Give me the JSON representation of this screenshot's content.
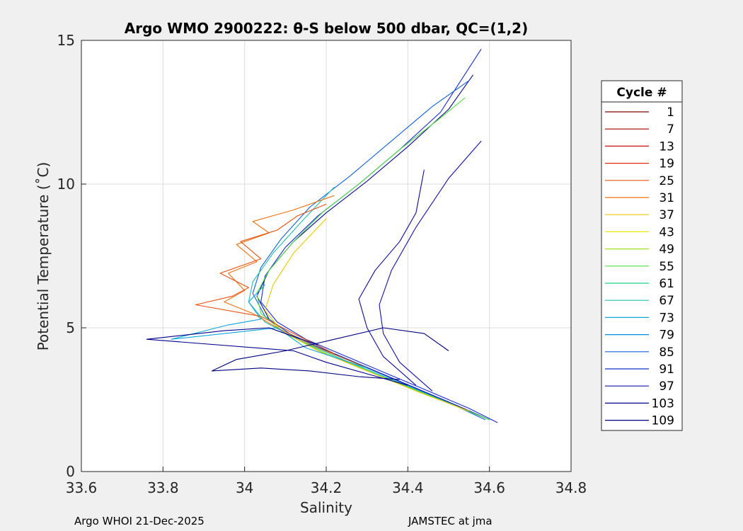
{
  "chart_data": {
    "type": "line",
    "title": "Argo WMO 2900222: θ-S below 500 dbar,  QC=(1,2)",
    "xlabel": "Salinity",
    "ylabel": "Potential Temperature (˚C)",
    "xlim": [
      33.6,
      34.8
    ],
    "ylim": [
      0,
      15
    ],
    "x_ticks": [
      "33.6",
      "33.8",
      "34",
      "34.2",
      "34.4",
      "34.6",
      "34.8"
    ],
    "y_ticks": [
      "0",
      "5",
      "10",
      "15"
    ],
    "grid": true,
    "legend": {
      "title": "Cycle #",
      "placement": "right-outside",
      "entries": [
        "1",
        "7",
        "13",
        "19",
        "25",
        "31",
        "37",
        "43",
        "49",
        "55",
        "61",
        "67",
        "73",
        "79",
        "85",
        "91",
        "97",
        "103",
        "109"
      ],
      "colors": [
        "#800000",
        "#a50000",
        "#c81010",
        "#e03010",
        "#e85010",
        "#f07010",
        "#e8c800",
        "#e8e800",
        "#a0e020",
        "#50e040",
        "#20d080",
        "#20c0b0",
        "#10a8d8",
        "#0090e0",
        "#1060e0",
        "#1030c8",
        "#1018b0",
        "#00008c",
        "#000080"
      ]
    },
    "series": [
      {
        "color": "#1a2ad0",
        "x": [
          34.62,
          34.55,
          34.45,
          34.35,
          34.25,
          34.15,
          34.08,
          34.04,
          34.05,
          34.1,
          34.18,
          34.28,
          34.38,
          34.48,
          34.58
        ],
        "y": [
          1.7,
          2.2,
          2.8,
          3.4,
          4.0,
          4.6,
          5.2,
          5.9,
          6.8,
          7.8,
          8.9,
          10.0,
          11.2,
          12.5,
          14.7
        ]
      },
      {
        "color": "#0a0a90",
        "x": [
          34.6,
          34.52,
          34.42,
          34.32,
          34.22,
          34.12,
          34.06,
          34.03,
          34.06,
          34.12,
          34.2,
          34.3,
          34.4,
          34.5,
          34.56
        ],
        "y": [
          1.8,
          2.3,
          2.9,
          3.5,
          4.1,
          4.7,
          5.3,
          6.1,
          7.0,
          8.0,
          9.0,
          10.1,
          11.3,
          12.6,
          13.8
        ]
      },
      {
        "color": "#1060e0",
        "x": [
          34.59,
          34.5,
          34.4,
          34.3,
          34.2,
          34.11,
          34.05,
          34.02,
          34.04,
          34.09,
          34.16,
          34.26,
          34.36,
          34.46,
          34.55
        ],
        "y": [
          1.8,
          2.4,
          3.0,
          3.6,
          4.2,
          4.8,
          5.4,
          6.2,
          7.1,
          8.1,
          9.2,
          10.3,
          11.5,
          12.7,
          13.6
        ]
      },
      {
        "color": "#20c0b0",
        "x": [
          34.6,
          34.48,
          34.36,
          34.24,
          34.13,
          34.05,
          34.01,
          34.02,
          34.07,
          34.14,
          34.22
        ],
        "y": [
          1.8,
          2.5,
          3.2,
          3.9,
          4.6,
          5.2,
          5.9,
          6.6,
          7.6,
          8.7,
          9.9
        ]
      },
      {
        "color": "#50e040",
        "x": [
          34.6,
          34.46,
          34.32,
          34.2,
          34.1,
          34.04,
          34.03,
          34.06,
          34.12,
          34.19,
          34.28,
          34.38,
          34.48,
          34.54
        ],
        "y": [
          1.8,
          2.6,
          3.4,
          4.1,
          4.8,
          5.5,
          6.2,
          7.0,
          8.0,
          9.0,
          10.0,
          11.2,
          12.3,
          13.0
        ]
      },
      {
        "color": "#e8c800",
        "x": [
          34.55,
          34.42,
          34.3,
          34.18,
          34.09,
          34.05,
          34.07,
          34.12,
          34.2
        ],
        "y": [
          2.1,
          2.8,
          3.5,
          4.2,
          4.9,
          5.6,
          6.5,
          7.6,
          8.8
        ]
      },
      {
        "color": "#f07010",
        "x": [
          34.3,
          34.18,
          34.08,
          34.02,
          33.95,
          34.0,
          33.96,
          34.03,
          33.98,
          34.06,
          34.02,
          34.12,
          34.22
        ],
        "y": [
          3.6,
          4.3,
          5.0,
          5.5,
          5.9,
          6.3,
          6.9,
          7.3,
          7.9,
          8.3,
          8.7,
          9.1,
          9.6
        ]
      },
      {
        "color": "#e85010",
        "x": [
          34.22,
          34.12,
          34.04,
          33.88,
          33.97,
          34.01,
          33.94,
          34.04,
          33.99,
          34.08,
          34.13,
          34.2
        ],
        "y": [
          4.1,
          4.8,
          5.4,
          5.8,
          6.1,
          6.4,
          6.9,
          7.4,
          8.0,
          8.4,
          8.9,
          9.3
        ]
      },
      {
        "color": "#10a8d8",
        "x": [
          34.3,
          34.15,
          34.08,
          33.82,
          33.96,
          34.04,
          34.01,
          34.05
        ],
        "y": [
          3.6,
          4.3,
          5.0,
          4.6,
          5.1,
          5.3,
          5.9,
          6.5
        ]
      },
      {
        "color": "#00008c",
        "x": [
          34.4,
          34.3,
          34.2,
          34.12,
          33.76,
          33.95,
          34.06,
          34.12,
          34.18
        ],
        "y": [
          3.0,
          3.4,
          3.8,
          4.2,
          4.6,
          4.9,
          5.0,
          4.7,
          4.4
        ]
      },
      {
        "color": "#000080",
        "x": [
          34.38,
          34.28,
          34.16,
          34.04,
          33.92,
          33.98,
          34.1,
          34.22,
          34.34,
          34.44,
          34.5
        ],
        "y": [
          3.2,
          3.3,
          3.5,
          3.6,
          3.5,
          3.9,
          4.2,
          4.6,
          5.0,
          4.8,
          4.2
        ]
      },
      {
        "color": "#0a0aa0",
        "x": [
          34.42,
          34.34,
          34.3,
          34.28,
          34.32,
          34.38,
          34.42,
          34.44
        ],
        "y": [
          3.0,
          4.0,
          5.0,
          6.0,
          7.0,
          8.0,
          9.0,
          10.5
        ]
      },
      {
        "color": "#1010b0",
        "x": [
          34.46,
          34.38,
          34.34,
          34.33,
          34.36,
          34.42,
          34.5,
          34.58
        ],
        "y": [
          2.8,
          3.8,
          4.8,
          5.8,
          7.0,
          8.5,
          10.2,
          11.5
        ]
      }
    ]
  },
  "footer": {
    "left": "Argo WHOI 21-Dec-2025",
    "right": "JAMSTEC at jma"
  }
}
